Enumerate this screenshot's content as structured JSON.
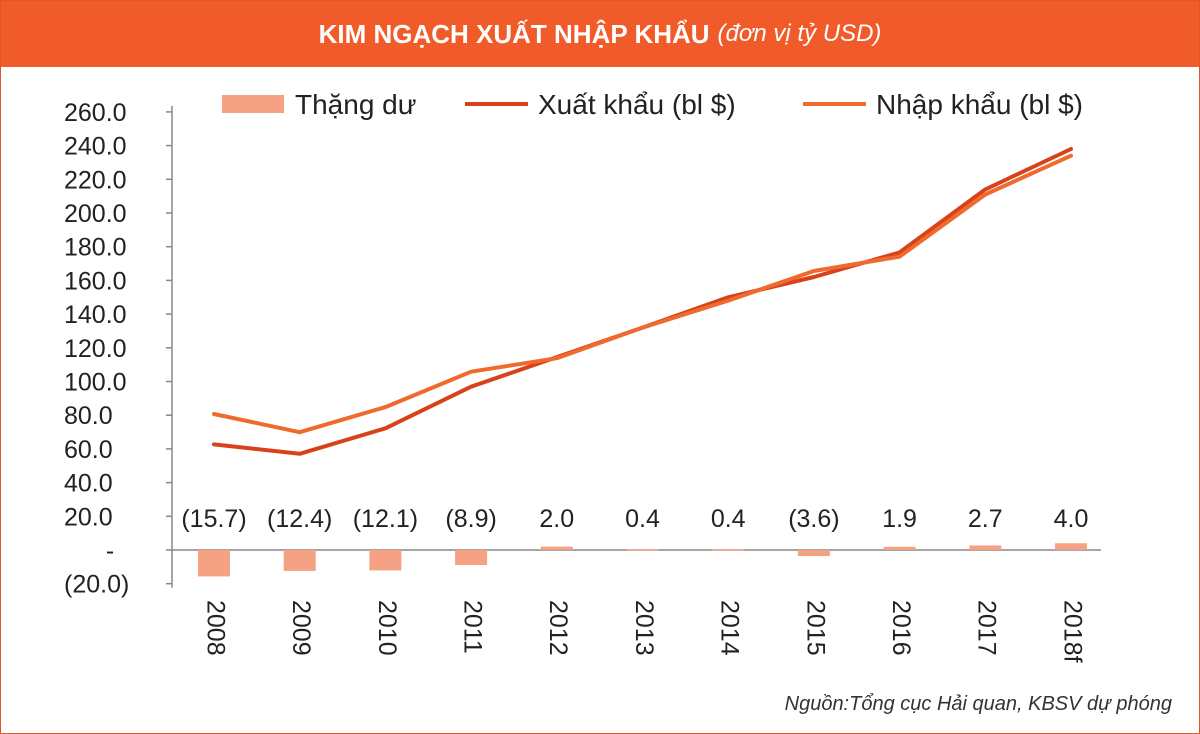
{
  "header": {
    "title": "KIM NGẠCH XUẤT NHẬP KHẨU",
    "subtitle": "(đơn vị tỷ USD)"
  },
  "source": "Nguồn:Tổng cục Hải quan, KBSV dự phóng",
  "colors": {
    "header_bg": "#f15a29",
    "export_line": "#d7421b",
    "import_line": "#ef6a2c",
    "surplus_bar": "#f4a184",
    "axis_text": "#222222"
  },
  "chart_data": {
    "type": "bar+line",
    "categories": [
      "2008",
      "2009",
      "2010",
      "2011",
      "2012",
      "2013",
      "2014",
      "2015",
      "2016",
      "2017",
      "2018f"
    ],
    "series": [
      {
        "name": "Thặng dư",
        "kind": "bar",
        "values": [
          -15.7,
          -12.4,
          -12.1,
          -8.9,
          2.0,
          0.4,
          0.4,
          -3.6,
          1.9,
          2.7,
          4.0
        ],
        "labels": [
          "(15.7)",
          "(12.4)",
          "(12.1)",
          "(8.9)",
          "2.0",
          "0.4",
          "0.4",
          "(3.6)",
          "1.9",
          "2.7",
          "4.0"
        ]
      },
      {
        "name": "Xuất khẩu (bl $)",
        "kind": "line",
        "values": [
          62.7,
          57.1,
          72.2,
          96.9,
          114.5,
          132.0,
          150.0,
          162.0,
          176.6,
          214.0,
          238.0
        ]
      },
      {
        "name": "Nhập khẩu (bl $)",
        "kind": "line",
        "values": [
          80.7,
          69.9,
          84.8,
          105.8,
          113.8,
          132.0,
          148.0,
          165.6,
          174.1,
          211.0,
          234.0
        ]
      }
    ],
    "yticks": [
      "260.0",
      "240.0",
      "220.0",
      "200.0",
      "180.0",
      "160.0",
      "140.0",
      "120.0",
      "100.0",
      "80.0",
      "60.0",
      "40.0",
      "20.0",
      "-",
      "(20.0)"
    ],
    "ytick_values": [
      260,
      240,
      220,
      200,
      180,
      160,
      140,
      120,
      100,
      80,
      60,
      40,
      20,
      0,
      -20
    ],
    "ylim": [
      -20,
      260
    ],
    "legend_position": "top",
    "grid": false
  }
}
